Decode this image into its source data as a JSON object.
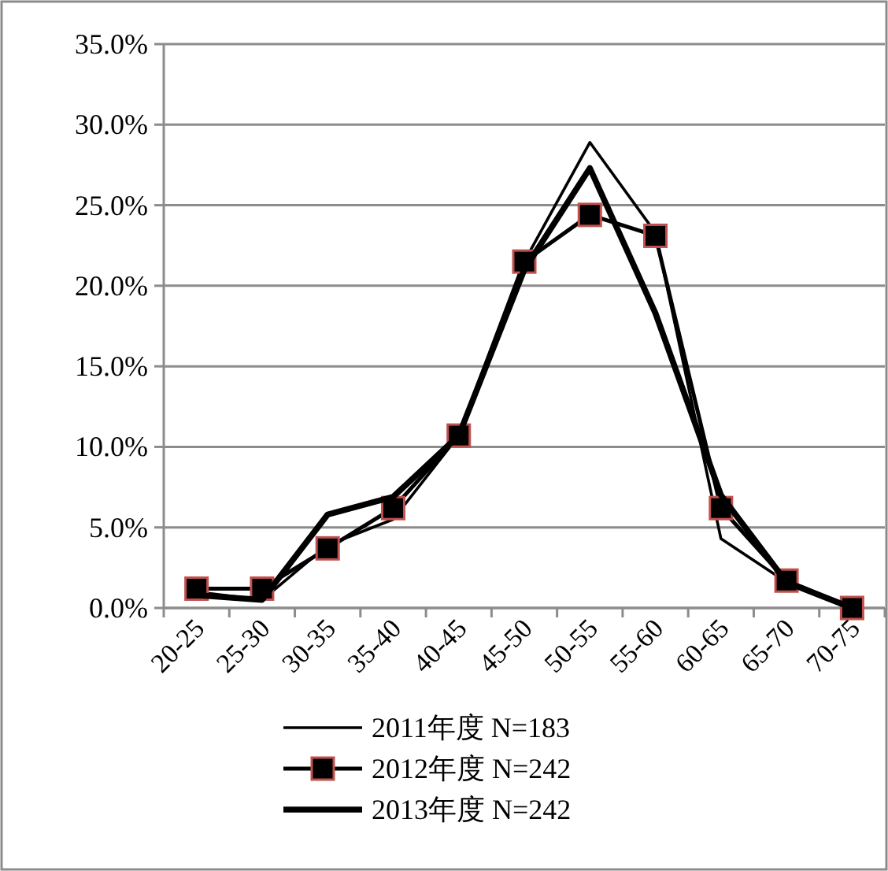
{
  "chart_data": {
    "type": "line",
    "categories": [
      "20-25",
      "25-30",
      "30-35",
      "35-40",
      "40-45",
      "45-50",
      "50-55",
      "55-60",
      "60-65",
      "65-70",
      "70-75"
    ],
    "series": [
      {
        "name": "2011年度 N=183",
        "color": "#000000",
        "marker": "none",
        "values": [
          1.0,
          0.5,
          3.9,
          5.5,
          10.7,
          21.5,
          28.9,
          23.3,
          4.3,
          1.6,
          0
        ]
      },
      {
        "name": "2012年度 N=242",
        "color": "#000000",
        "marker": "square",
        "values": [
          1.2,
          1.2,
          3.7,
          6.2,
          10.7,
          21.5,
          24.4,
          23.1,
          6.2,
          1.7,
          0
        ]
      },
      {
        "name": "2013年度 N=242",
        "color": "#000000",
        "marker": "none",
        "values": [
          0.8,
          0.5,
          5.8,
          6.9,
          10.7,
          21.0,
          27.3,
          18.3,
          7.0,
          1.6,
          0
        ]
      }
    ],
    "ylim": [
      0,
      35
    ],
    "yticks": [
      {
        "value": 0,
        "label": "0.0%"
      },
      {
        "value": 5,
        "label": "5.0%"
      },
      {
        "value": 10,
        "label": "10.0%"
      },
      {
        "value": 15,
        "label": "15.0%"
      },
      {
        "value": 20,
        "label": "20.0%"
      },
      {
        "value": 25,
        "label": "25.0%"
      },
      {
        "value": 30,
        "label": "30.0%"
      },
      {
        "value": 35,
        "label": "35.0%"
      }
    ],
    "grid": "y",
    "legend": "bottom"
  }
}
